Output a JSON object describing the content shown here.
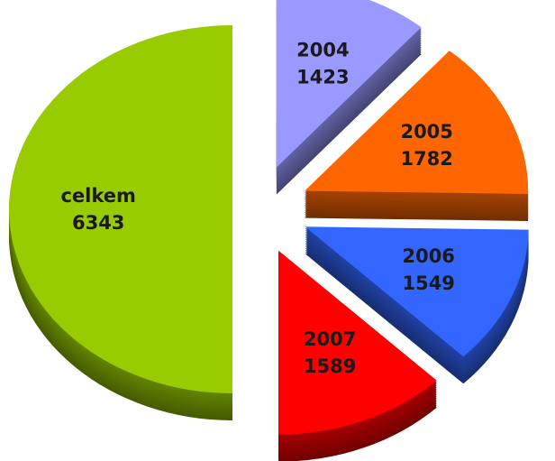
{
  "chart_data": {
    "type": "pie",
    "categories": [
      "2004",
      "2005",
      "2006",
      "2007",
      "celkem"
    ],
    "values": [
      1423,
      1782,
      1549,
      1589,
      6343
    ],
    "colors": [
      "#9999ff",
      "#ff6600",
      "#3366ff",
      "#ff0000",
      "#99cc00"
    ]
  }
}
